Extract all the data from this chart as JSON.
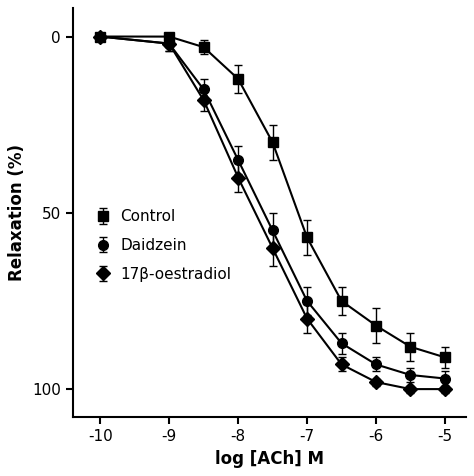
{
  "xlabel": "log [ACh] M",
  "ylabel": "Relaxation (%)",
  "x_ticks": [
    -10,
    -9,
    -8,
    -7,
    -6,
    -5
  ],
  "x_tick_labels": [
    "-10",
    "-9",
    "-8",
    "-7",
    "-6",
    "-5"
  ],
  "yticks": [
    0,
    50,
    100
  ],
  "series": [
    {
      "label": "Control",
      "marker": "s",
      "x": [
        -10,
        -9,
        -8.5,
        -8,
        -7.5,
        -7,
        -6.5,
        -6,
        -5.5,
        -5
      ],
      "y": [
        0,
        0,
        3,
        12,
        30,
        57,
        75,
        82,
        88,
        91
      ],
      "yerr": [
        0.5,
        0.5,
        2,
        4,
        5,
        5,
        4,
        5,
        4,
        3
      ]
    },
    {
      "label": "Daidzein",
      "marker": "o",
      "x": [
        -10,
        -9,
        -8.5,
        -8,
        -7.5,
        -7,
        -6.5,
        -6,
        -5.5,
        -5
      ],
      "y": [
        0,
        2,
        15,
        35,
        55,
        75,
        87,
        93,
        96,
        97
      ],
      "yerr": [
        0.5,
        2,
        3,
        4,
        5,
        4,
        3,
        2,
        2,
        2
      ]
    },
    {
      "label": "17β-oestradiol",
      "marker": "D",
      "x": [
        -10,
        -9,
        -8.5,
        -8,
        -7.5,
        -7,
        -6.5,
        -6,
        -5.5,
        -5
      ],
      "y": [
        0,
        2,
        18,
        40,
        60,
        80,
        93,
        98,
        100,
        100
      ],
      "yerr": [
        0.5,
        2,
        3,
        4,
        5,
        4,
        2,
        1,
        1,
        1
      ]
    }
  ],
  "markersize": 7,
  "linewidth": 1.5,
  "capsize": 3,
  "elinewidth": 1.0
}
